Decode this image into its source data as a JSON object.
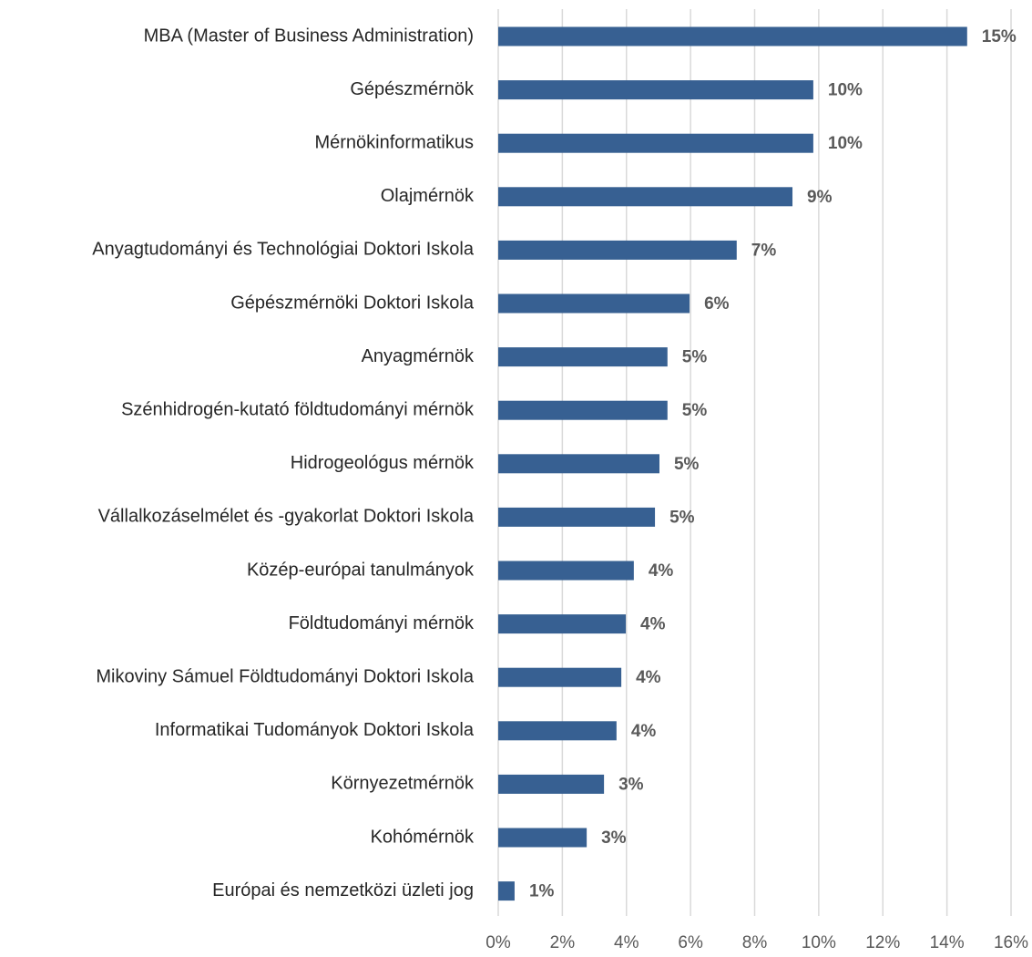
{
  "chart_data": {
    "type": "bar",
    "orientation": "horizontal",
    "categories": [
      "MBA (Master of Business Administration)",
      "Gépészmérnök",
      "Mérnökinformatikus",
      "Olajmérnök",
      "Anyagtudományi és Technológiai Doktori Iskola",
      "Gépészmérnöki Doktori Iskola",
      "Anyagmérnök",
      "Szénhidrogén-kutató földtudományi mérnök",
      "Hidrogeológus mérnök",
      "Vállalkozáselmélet és -gyakorlat Doktori Iskola",
      "Közép-európai tanulmányok",
      "Földtudományi mérnök",
      "Mikoviny Sámuel Földtudományi Doktori Iskola",
      "Informatikai Tudományok Doktori Iskola",
      "Környezetmérnök",
      "Kohómérnök",
      "Európai és nemzetközi üzleti jog"
    ],
    "values": [
      14.63,
      9.83,
      9.83,
      9.18,
      7.44,
      5.97,
      5.28,
      5.28,
      5.03,
      4.89,
      4.23,
      3.98,
      3.84,
      3.69,
      3.3,
      2.76,
      0.51
    ],
    "value_labels": [
      "15%",
      "10%",
      "10%",
      "9%",
      "7%",
      "6%",
      "5%",
      "5%",
      "5%",
      "5%",
      "4%",
      "4%",
      "4%",
      "4%",
      "3%",
      "3%",
      "1%"
    ],
    "color": "#376092",
    "xlim": [
      0,
      16
    ],
    "xticks": [
      {
        "value": 0,
        "label": "0%"
      },
      {
        "value": 2,
        "label": "2%"
      },
      {
        "value": 4,
        "label": "4%"
      },
      {
        "value": 6,
        "label": "6%"
      },
      {
        "value": 8,
        "label": "8%"
      },
      {
        "value": 10,
        "label": "10%"
      },
      {
        "value": 12,
        "label": "12%"
      },
      {
        "value": 14,
        "label": "14%"
      },
      {
        "value": 16,
        "label": "16%"
      }
    ],
    "grid": true
  }
}
